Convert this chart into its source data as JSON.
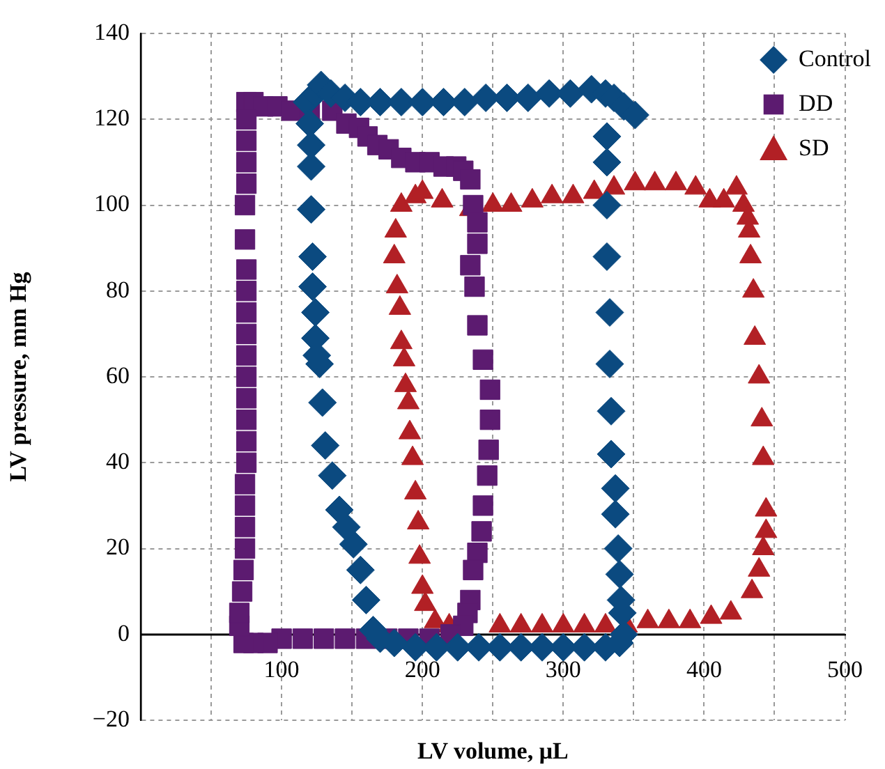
{
  "chart_data": {
    "type": "scatter",
    "xlabel": "LV volume, μL",
    "ylabel": "LV pressure, mm Hg",
    "xlim": [
      0,
      500
    ],
    "ylim": [
      -20,
      140
    ],
    "xticks": [
      {
        "value": 50,
        "label": null
      },
      100,
      {
        "value": 150,
        "label": null
      },
      200,
      {
        "value": 250,
        "label": null
      },
      300,
      {
        "value": 350,
        "label": null
      },
      400,
      {
        "value": 450,
        "label": null
      },
      500
    ],
    "yticks": [
      {
        "value": -20,
        "label": "−20"
      },
      0,
      20,
      40,
      60,
      80,
      100,
      120,
      140
    ],
    "grid": true,
    "legend": "top right",
    "series": [
      {
        "name": "Control",
        "color": "#0b4a80",
        "marker": "diamond",
        "x": [
          118,
          124,
          128,
          135,
          145,
          156,
          170,
          185,
          200,
          215,
          230,
          245,
          260,
          275,
          290,
          305,
          320,
          330,
          336,
          343,
          351,
          331,
          331,
          331,
          331,
          333,
          333,
          334,
          334,
          337,
          337,
          339,
          340,
          341,
          342,
          343,
          340,
          330,
          315,
          300,
          285,
          270,
          255,
          240,
          225,
          210,
          195,
          180,
          170,
          165,
          160,
          156,
          151,
          146,
          141,
          136,
          131,
          129,
          127,
          125,
          124,
          124,
          122,
          122,
          121,
          121,
          121,
          120
        ],
        "values": [
          124,
          126,
          128,
          126,
          125,
          124,
          124,
          124,
          124,
          124,
          124,
          125,
          125,
          125,
          126,
          126,
          127,
          126,
          125,
          123,
          121,
          116,
          110,
          100,
          88,
          75,
          63,
          52,
          42,
          34,
          28,
          20,
          14,
          8,
          5,
          0,
          -2,
          -3,
          -3,
          -3,
          -3,
          -3,
          -3,
          -3,
          -3,
          -3,
          -3,
          -2,
          -1,
          1,
          8,
          15,
          21,
          25,
          29,
          37,
          44,
          54,
          63,
          65,
          69,
          75,
          81,
          88,
          99,
          109,
          114,
          119
        ]
      },
      {
        "name": "DD",
        "color": "#5c1b70",
        "marker": "square",
        "x": [
          75,
          80,
          87,
          97,
          107,
          120,
          136,
          146,
          155,
          161,
          168,
          176,
          185,
          195,
          205,
          215,
          224,
          229,
          234,
          236,
          239,
          239,
          234,
          237,
          239,
          243,
          248,
          248,
          247,
          246,
          243,
          242,
          239,
          236,
          234,
          232,
          229,
          220,
          205,
          190,
          175,
          160,
          145,
          130,
          115,
          100,
          90,
          80,
          73,
          70,
          70,
          72,
          73,
          74,
          74,
          74,
          74,
          75,
          75,
          75,
          75,
          75,
          75,
          75,
          75,
          75,
          75,
          74,
          74,
          75,
          75,
          75,
          75
        ],
        "values": [
          124,
          124,
          123,
          123,
          122,
          122,
          122,
          119,
          118,
          116,
          114,
          113,
          111,
          110,
          110,
          109,
          109,
          108,
          106,
          100,
          96,
          91,
          86,
          81,
          72,
          64,
          57,
          50,
          43,
          37,
          30,
          24,
          19,
          15,
          8,
          5,
          2,
          0,
          -1,
          -1,
          -1,
          -1,
          -1,
          -1,
          -1,
          -1,
          -2,
          -2,
          -2,
          2,
          5,
          10,
          15,
          20,
          25,
          30,
          35,
          40,
          45,
          50,
          55,
          60,
          65,
          70,
          75,
          80,
          85,
          92,
          100,
          105,
          110,
          115,
          120
        ]
      },
      {
        "name": "SD",
        "color": "#b22025",
        "marker": "triangle",
        "x": [
          219,
          209,
          202,
          200,
          198,
          197,
          195,
          193,
          191,
          190,
          188,
          187,
          185,
          184,
          182,
          180,
          181,
          185,
          195,
          200,
          214,
          234,
          250,
          263,
          278,
          292,
          307,
          322,
          336,
          351,
          365,
          380,
          394,
          404,
          414,
          423,
          428,
          431,
          432,
          433,
          435,
          436,
          439,
          441,
          442,
          444,
          444,
          442,
          439,
          434,
          419,
          405,
          390,
          375,
          360,
          345,
          330,
          315,
          300,
          285,
          270,
          255
        ],
        "values": [
          2,
          3,
          7,
          11,
          18,
          26,
          33,
          41,
          47,
          54,
          58,
          64,
          68,
          76,
          81,
          88,
          94,
          100,
          102,
          103,
          101,
          99,
          100,
          100,
          101,
          102,
          102,
          103,
          104,
          105,
          105,
          105,
          104,
          101,
          101,
          104,
          100,
          97,
          94,
          88,
          80,
          69,
          60,
          50,
          41,
          29,
          24,
          20,
          15,
          10,
          5,
          4,
          3,
          3,
          3,
          2,
          2,
          2,
          2,
          2,
          2,
          2
        ]
      }
    ]
  }
}
